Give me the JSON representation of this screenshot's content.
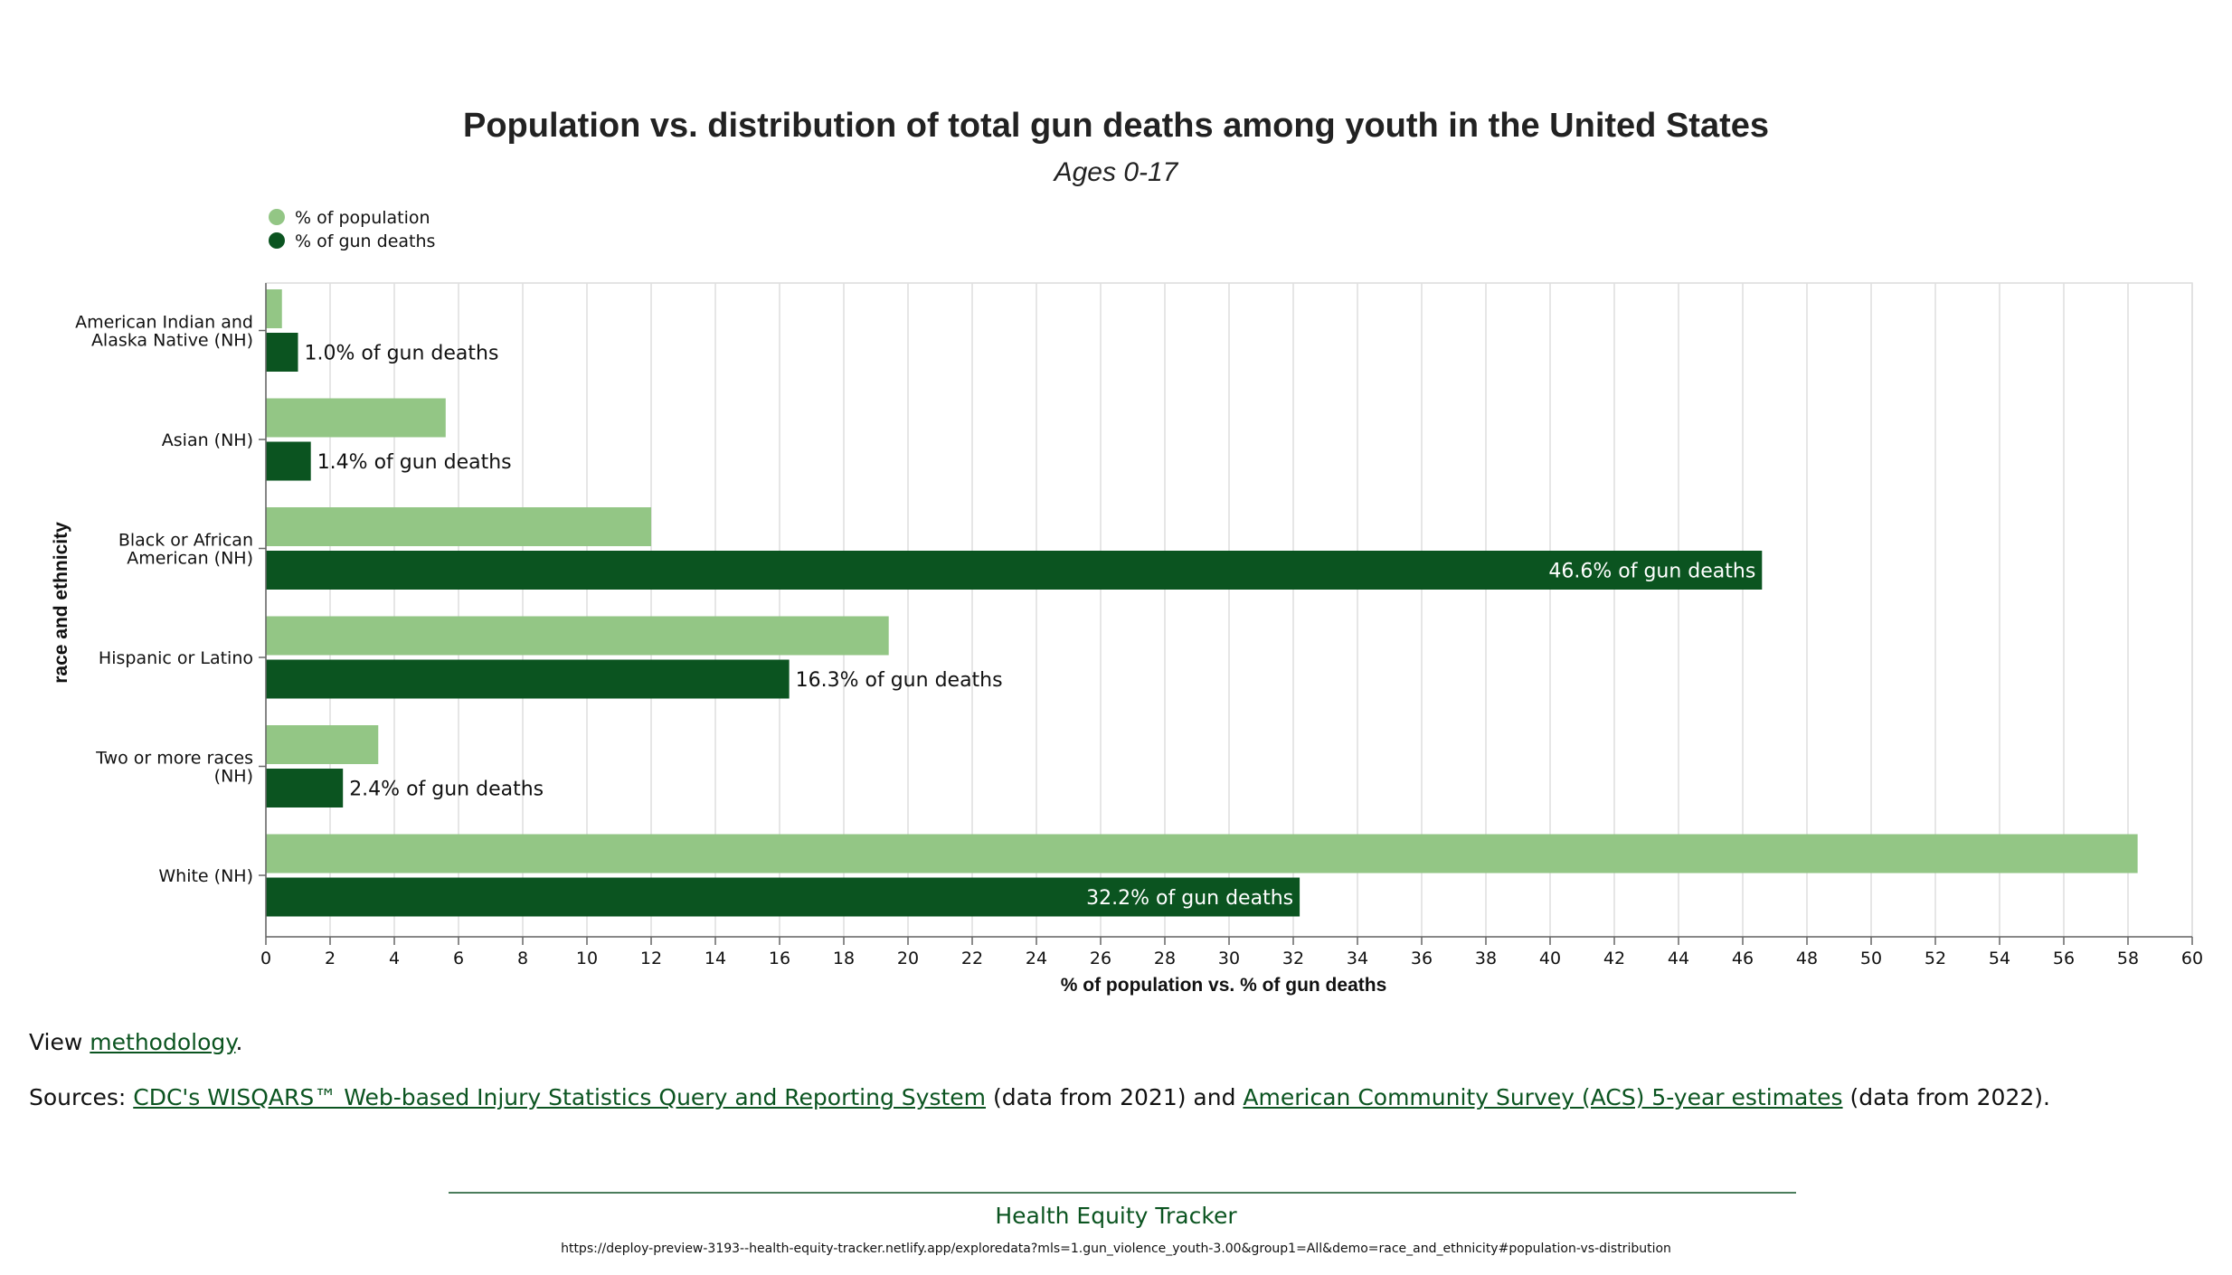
{
  "chart_data": {
    "type": "bar",
    "orientation": "horizontal",
    "title": "Population vs. distribution of total gun deaths among youth in the United States",
    "subtitle": "Ages 0-17",
    "xlabel": "% of population vs. % of gun deaths",
    "ylabel": "race and ethnicity",
    "xlim": [
      0,
      60
    ],
    "x_ticks": [
      0,
      2,
      4,
      6,
      8,
      10,
      12,
      14,
      16,
      18,
      20,
      22,
      24,
      26,
      28,
      30,
      32,
      34,
      36,
      38,
      40,
      42,
      44,
      46,
      48,
      50,
      52,
      54,
      56,
      58,
      60
    ],
    "grid": "vertical",
    "legend_position": "top-left",
    "categories": [
      [
        "American Indian and",
        "Alaska Native (NH)"
      ],
      [
        "Asian (NH)"
      ],
      [
        "Black or African",
        "American (NH)"
      ],
      [
        "Hispanic or Latino"
      ],
      [
        "Two or more races",
        "(NH)"
      ],
      [
        "White (NH)"
      ]
    ],
    "series": [
      {
        "name": "% of population",
        "color": "#93c685",
        "values": [
          0.5,
          5.6,
          12.0,
          19.4,
          3.5,
          58.3
        ]
      },
      {
        "name": "% of gun deaths",
        "color": "#0b5420",
        "values": [
          1.0,
          1.4,
          46.6,
          16.3,
          2.4,
          32.2
        ],
        "labels": [
          "1.0% of gun deaths",
          "1.4% of gun deaths",
          "46.6% of gun deaths",
          "16.3% of gun deaths",
          "2.4% of gun deaths",
          "32.2% of gun deaths"
        ]
      }
    ]
  },
  "notes": {
    "methodology_prefix": "View ",
    "methodology_link": "methodology",
    "methodology_suffix": ".",
    "sources_prefix": "Sources: ",
    "source1_link": "CDC's WISQARS™ Web-based Injury Statistics Query and Reporting System",
    "source1_suffix": " (data from 2021) and ",
    "source2_link": "American Community Survey (ACS) 5-year estimates",
    "source2_suffix": " (data from 2022)."
  },
  "footer": {
    "title": "Health Equity Tracker",
    "url": "https://deploy-preview-3193--health-equity-tracker.netlify.app/exploredata?mls=1.gun_violence_youth-3.00&group1=All&demo=race_and_ethnicity#population-vs-distribution"
  }
}
